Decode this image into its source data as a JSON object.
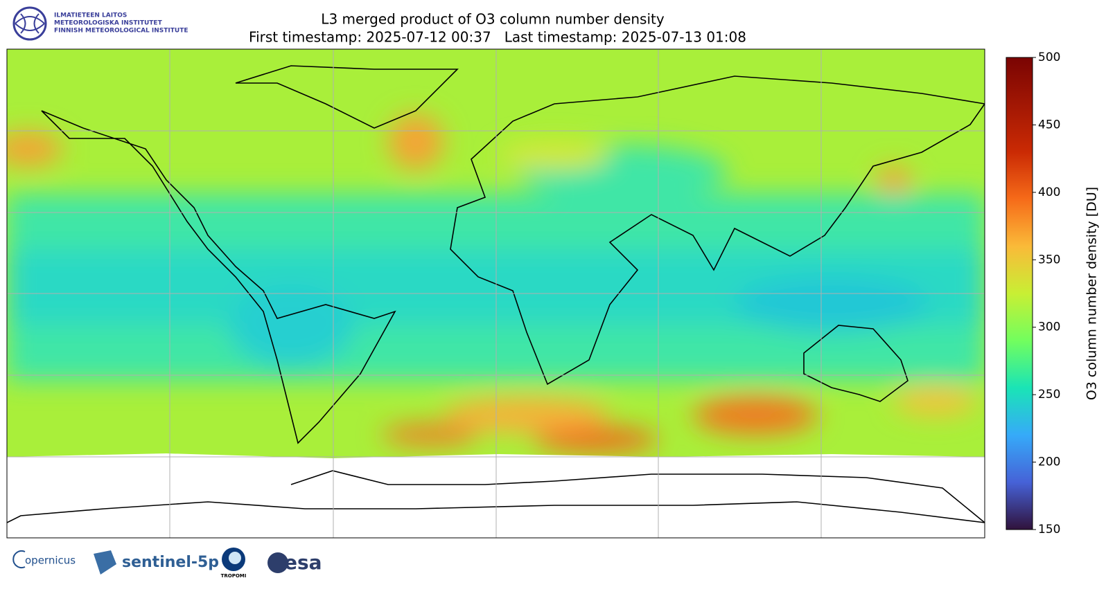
{
  "header": {
    "logo_lines": [
      "ILMATIETEEN LAITOS",
      "METEOROLOGISKA INSTITUTET",
      "FINNISH METEOROLOGICAL INSTITUTE"
    ],
    "title": "L3 merged product of O3 column number density",
    "subtitle": "First timestamp: 2025-07-12 00:37   Last timestamp: 2025-07-13 01:08"
  },
  "colorbar": {
    "label": "O3 column number density [DU]",
    "ylim": [
      150,
      500
    ],
    "yticks": [
      150,
      200,
      250,
      300,
      350,
      400,
      450,
      500
    ]
  },
  "footer": {
    "logos": [
      "opernicus",
      "sentinel-5p",
      "TROPOMI",
      "esa"
    ]
  }
}
